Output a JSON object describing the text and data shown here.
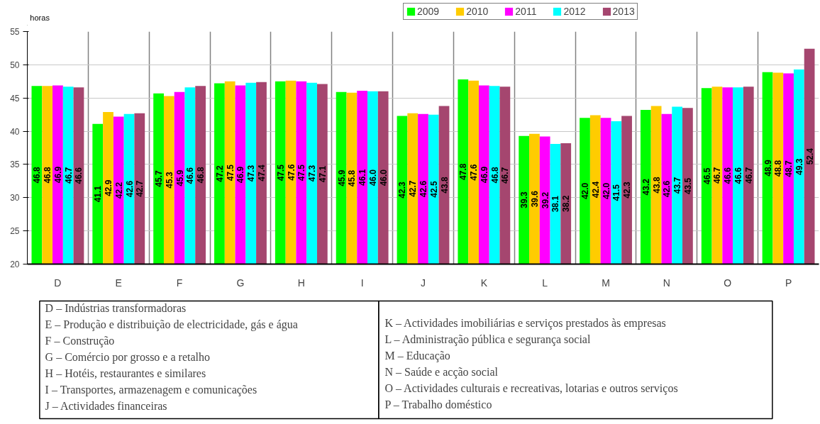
{
  "chart_data": {
    "type": "bar",
    "ylabel": "horas",
    "categories": [
      "D",
      "E",
      "F",
      "G",
      "H",
      "I",
      "J",
      "K",
      "L",
      "M",
      "N",
      "O",
      "P"
    ],
    "series": [
      {
        "name": "2009",
        "color": "#00ff00",
        "values": [
          46.8,
          41.1,
          45.7,
          47.2,
          47.5,
          45.9,
          42.3,
          47.8,
          39.3,
          42.0,
          43.2,
          46.5,
          48.9
        ],
        "value_labels": [
          "46.8",
          "41.1",
          "45.7",
          "47.2",
          "47.5",
          "45.9",
          "42.3",
          "47.8",
          "39.3",
          "42.0",
          "43.2",
          "46.5",
          "48.9"
        ]
      },
      {
        "name": "2010",
        "color": "#ffcc00",
        "values": [
          46.8,
          42.9,
          45.3,
          47.5,
          47.6,
          45.8,
          42.7,
          47.6,
          39.6,
          42.4,
          43.8,
          46.7,
          48.8
        ],
        "value_labels": [
          "46.8",
          "42.9",
          "45.3",
          "47.5",
          "47.6",
          "45.8",
          "42.7",
          "47.6",
          "39.6",
          "42.4",
          "43.8",
          "46.7",
          "48.8"
        ]
      },
      {
        "name": "2011",
        "color": "#ff00ff",
        "values": [
          46.9,
          42.2,
          45.9,
          46.9,
          47.5,
          46.1,
          42.6,
          46.9,
          39.2,
          42.0,
          42.6,
          46.6,
          48.7
        ],
        "value_labels": [
          "46.9",
          "42.2",
          "45.9",
          "46.9",
          "47.5",
          "46.1",
          "42.6",
          "46.9",
          "39.2",
          "42.0",
          "42.6",
          "46.6",
          "48.7"
        ]
      },
      {
        "name": "2012",
        "color": "#00ffff",
        "values": [
          46.7,
          42.6,
          46.6,
          47.3,
          47.3,
          46.0,
          42.5,
          46.8,
          38.1,
          41.5,
          43.7,
          46.6,
          49.3
        ],
        "value_labels": [
          "46.7",
          "42.6",
          "46.6",
          "47.3",
          "47.3",
          "46.0",
          "42.5",
          "46.8",
          "38.1",
          "41.5",
          "43.7",
          "46.6",
          "49.3"
        ]
      },
      {
        "name": "2013",
        "color": "#a5466f",
        "values": [
          46.6,
          42.7,
          46.8,
          47.4,
          47.1,
          46.0,
          43.8,
          46.7,
          38.2,
          42.3,
          43.5,
          46.7,
          52.4
        ],
        "value_labels": [
          "46.6",
          "42.7",
          "46.8",
          "47.4",
          "47.1",
          "46.0",
          "43.8",
          "46.7",
          "38.2",
          "42.3",
          "43.5",
          "46.7",
          "52.4"
        ]
      }
    ],
    "ylim": [
      20,
      55
    ],
    "yticks": [
      20,
      25,
      30,
      35,
      40,
      45,
      50,
      55
    ],
    "grid": true,
    "legend": "top right",
    "data_labels": true,
    "annotations": [
      "D – Indústrias transformadoras",
      "E – Produção e distribuição de electricidade, gás e água",
      "F – Construção",
      "G – Comércio por grosso e a retalho",
      "H – Hotéis, restaurantes e similares",
      "I – Transportes, armazenagem e comunicações",
      "J – Actividades financeiras",
      "K – Actividades imobiliárias e serviços prestados às empresas",
      "L – Administração pública e segurança social",
      "M – Educação",
      "N – Saúde e acção social",
      "O – Actividades culturais e recreativas, lotarias e outros serviços",
      "P – Trabalho doméstico"
    ]
  }
}
